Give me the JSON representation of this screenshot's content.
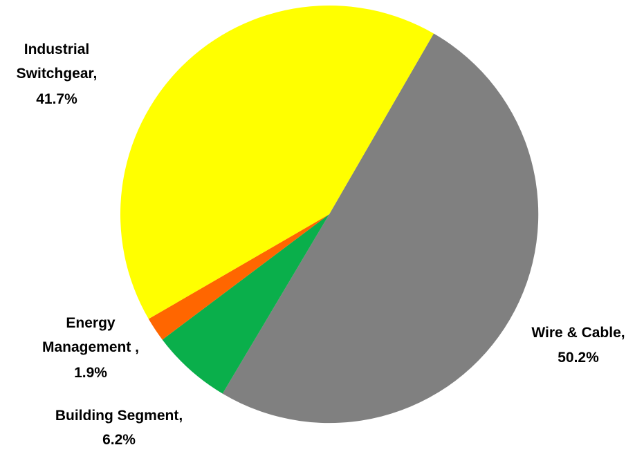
{
  "chart_data": {
    "type": "pie",
    "title": "",
    "start_angle_deg": 30,
    "direction": "clockwise",
    "slices": [
      {
        "name": "Wire & Cable,",
        "value": 50.2,
        "label": "50.2%",
        "color": "#808080"
      },
      {
        "name": "Building Segment,",
        "value": 6.2,
        "label": "6.2%",
        "color": "#0AAF4B"
      },
      {
        "name": "Energy Management ,",
        "value": 1.9,
        "label": "1.9%",
        "color": "#FF6600"
      },
      {
        "name": "Industrial Switchgear,",
        "value": 41.7,
        "label": "41.7%",
        "color": "#FFFF00"
      }
    ]
  }
}
